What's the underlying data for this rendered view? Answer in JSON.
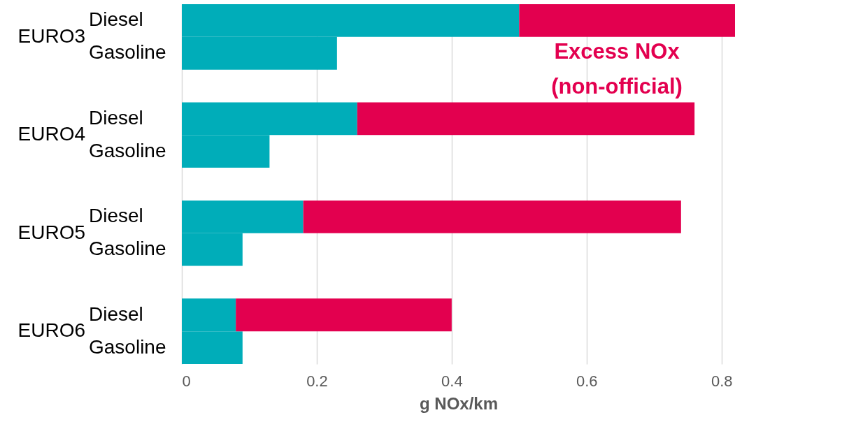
{
  "chart_data": {
    "type": "bar",
    "orientation": "horizontal",
    "stacked": true,
    "categories": [
      "Diesel",
      "Gasoline",
      "Diesel",
      "Gasoline",
      "Diesel",
      "Gasoline",
      "Diesel",
      "Gasoline"
    ],
    "series": [
      {
        "color": "#00adb9",
        "values": [
          0.5,
          0.23,
          0.26,
          0.13,
          0.18,
          0.09,
          0.08,
          0.09
        ]
      },
      {
        "name": "Excess NOx (non-official)",
        "color": "#e3004f",
        "values": [
          0.32,
          null,
          0.5,
          null,
          0.56,
          null,
          0.32,
          null
        ]
      }
    ],
    "annotations": [
      "EURO3",
      "EURO4",
      "EURO5",
      "EURO6"
    ],
    "xlabel": "g NOx/km",
    "xlim": [
      0,
      0.82
    ],
    "xticks": [
      0,
      0.2,
      0.4,
      0.6,
      0.8
    ],
    "grid": "x"
  }
}
